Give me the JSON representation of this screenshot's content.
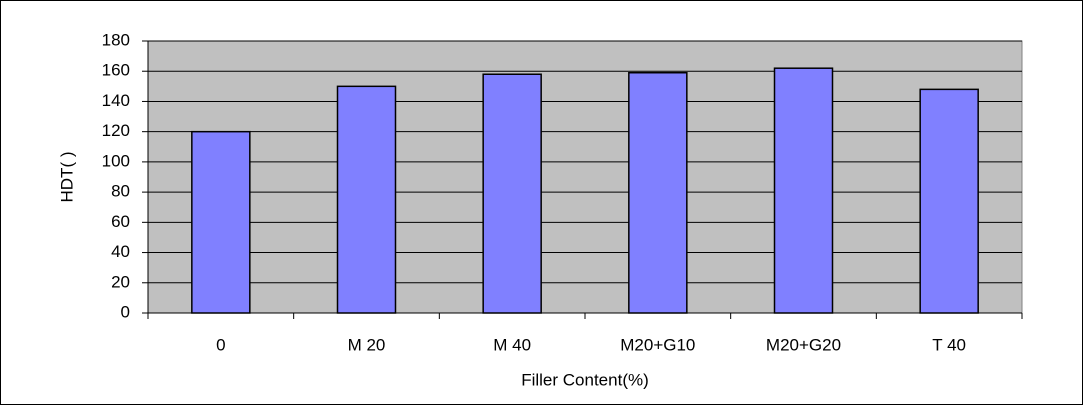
{
  "chart_data": {
    "type": "bar",
    "categories": [
      "0",
      "M 20",
      "M 40",
      "M20+G10",
      "M20+G20",
      "T 40"
    ],
    "values": [
      120,
      150,
      158,
      159,
      162,
      148
    ],
    "color": "#8080ff",
    "xlabel": "Filler Content(%)",
    "ylabel": "HDT(   )",
    "ylim": [
      0,
      180
    ],
    "yticks": [
      0,
      20,
      40,
      60,
      80,
      100,
      120,
      140,
      160,
      180
    ],
    "grid": true
  }
}
